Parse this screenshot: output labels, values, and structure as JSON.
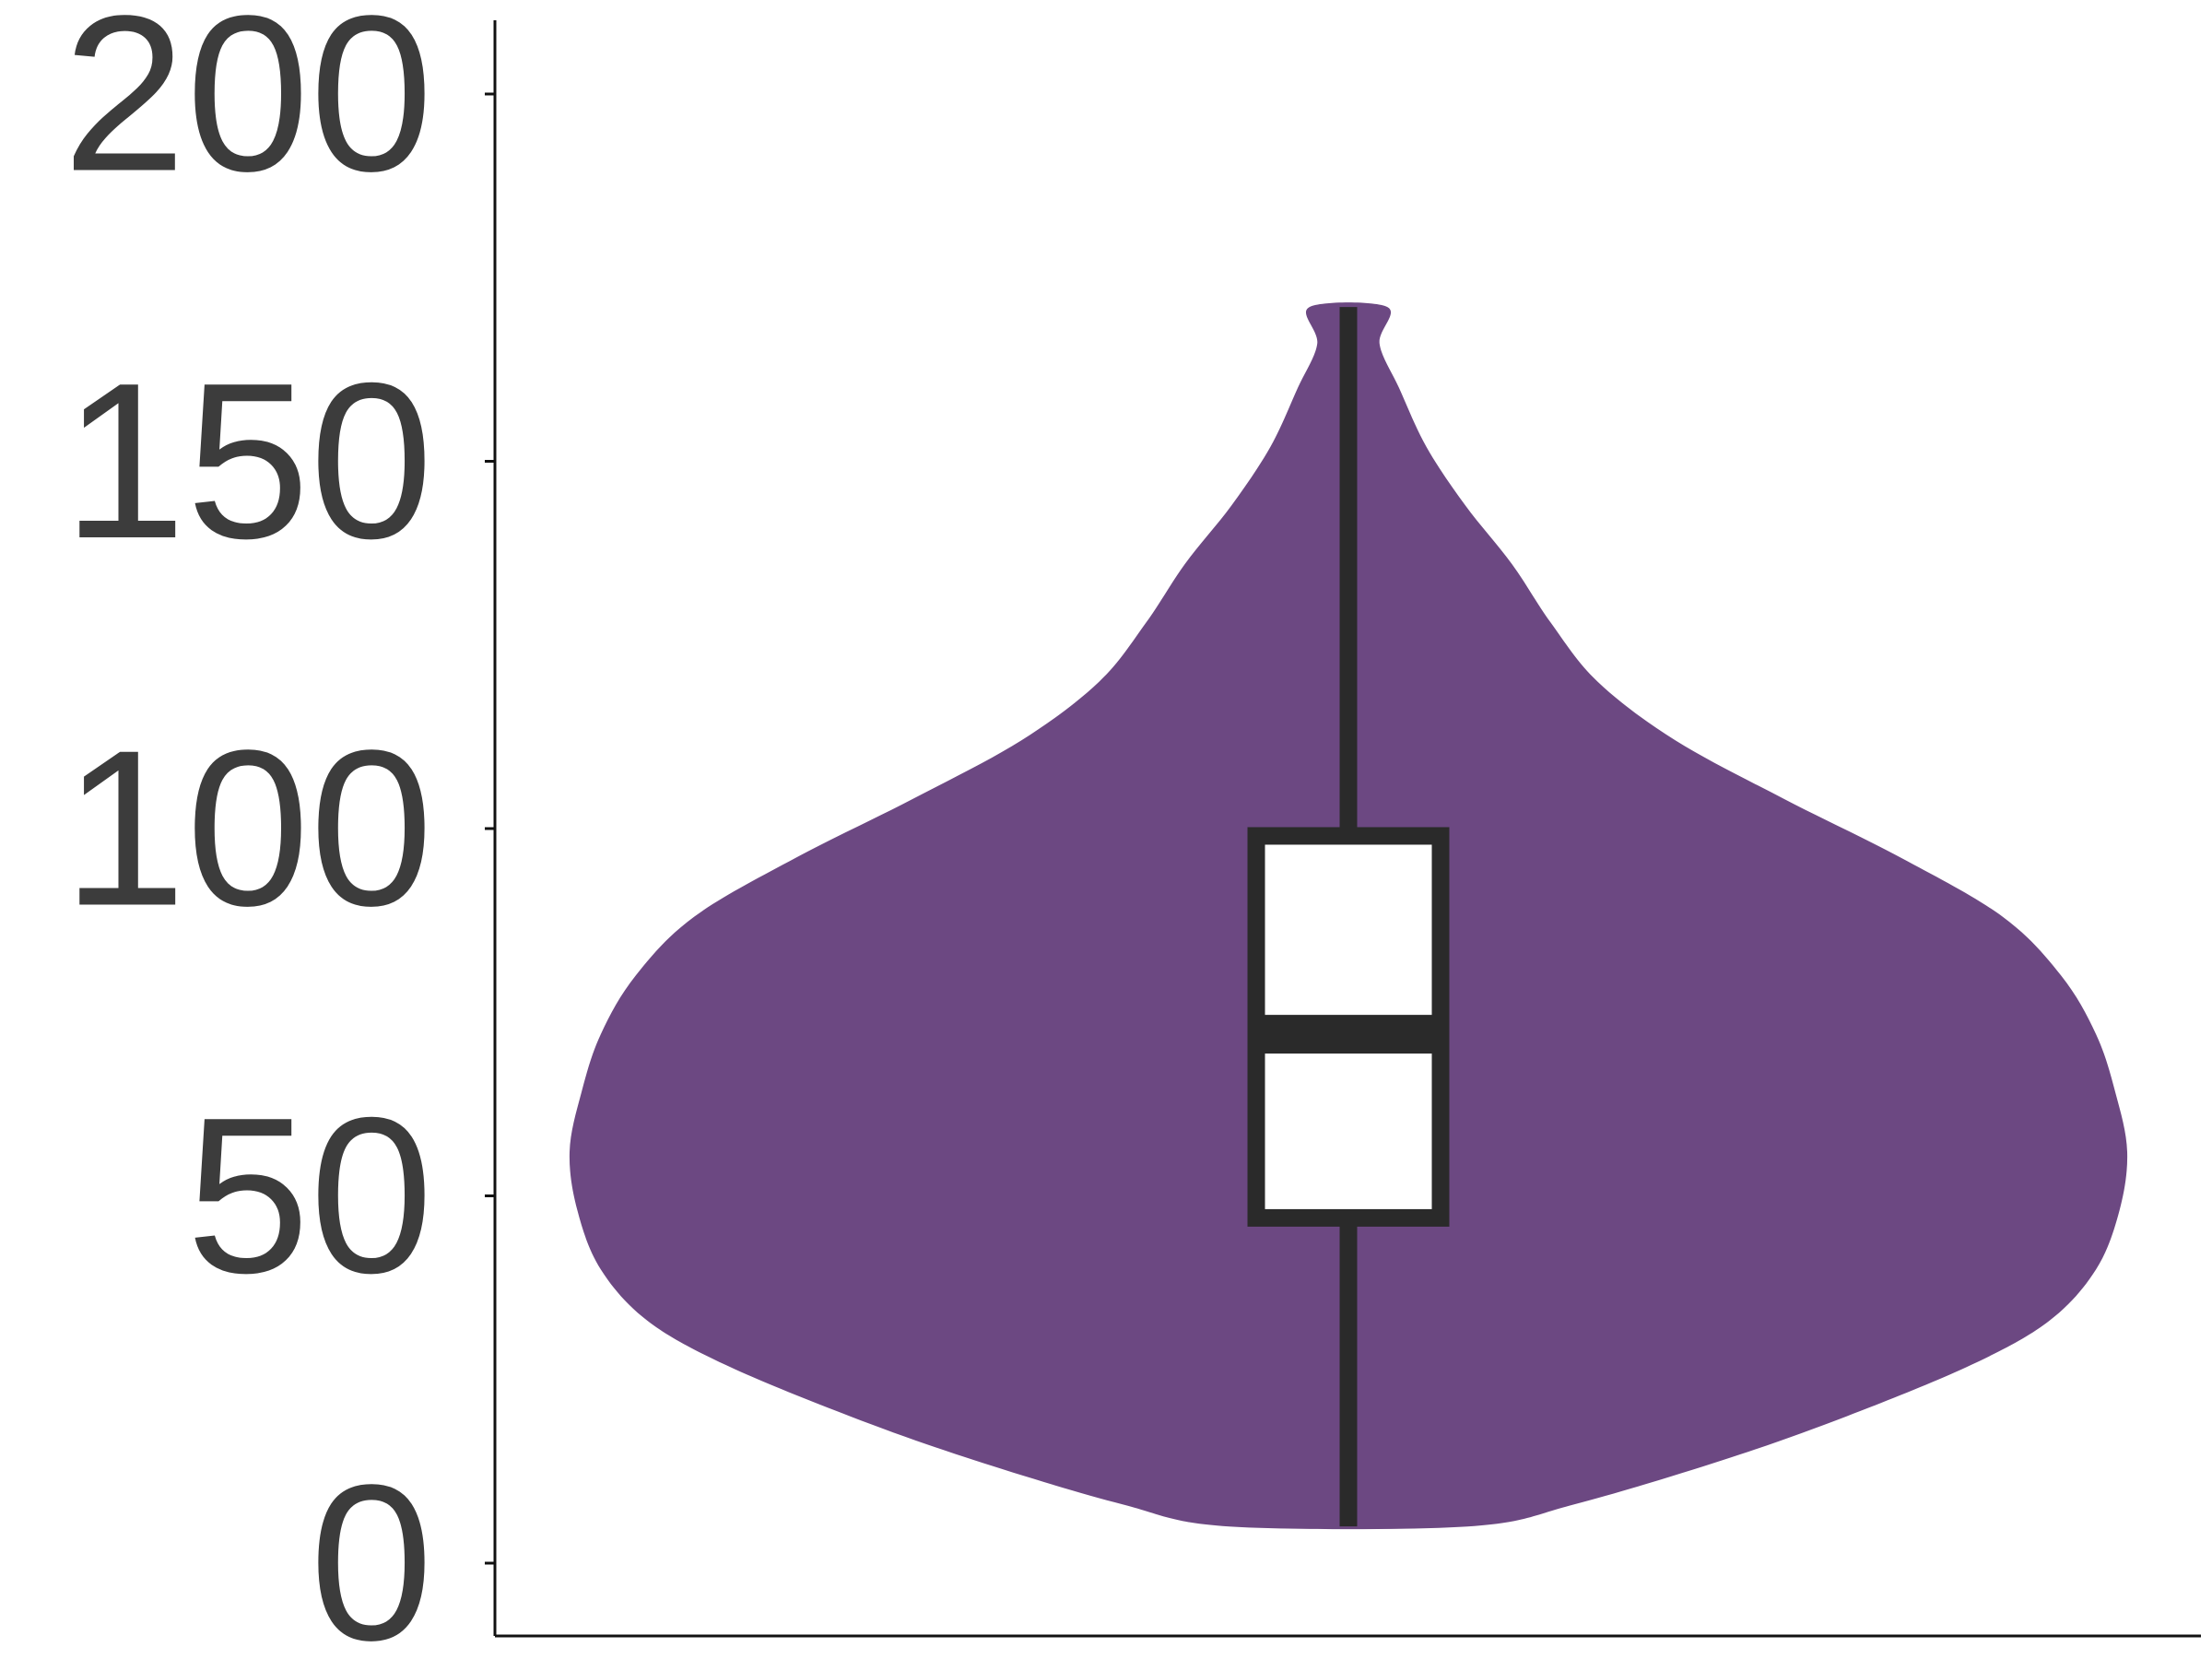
{
  "chart_data": {
    "type": "violin",
    "title": "",
    "xlabel": "",
    "ylabel": "",
    "ylim": [
      -10,
      210
    ],
    "yticks": [
      {
        "value": 0,
        "label": "0"
      },
      {
        "value": 50,
        "label": "50"
      },
      {
        "value": 100,
        "label": "100"
      },
      {
        "value": 150,
        "label": "150"
      },
      {
        "value": 200,
        "label": "200"
      }
    ],
    "grid": false,
    "legend": "none",
    "violin": {
      "color": "#6c4882",
      "min": 5,
      "max": 171,
      "profile": [
        {
          "y": 5,
          "w": 0.153
        },
        {
          "y": 8,
          "w": 0.29
        },
        {
          "y": 14,
          "w": 0.48
        },
        {
          "y": 20,
          "w": 0.64
        },
        {
          "y": 27,
          "w": 0.8
        },
        {
          "y": 33,
          "w": 0.9
        },
        {
          "y": 40,
          "w": 0.96
        },
        {
          "y": 48,
          "w": 0.99
        },
        {
          "y": 56,
          "w": 1.0
        },
        {
          "y": 64,
          "w": 0.985
        },
        {
          "y": 72,
          "w": 0.96
        },
        {
          "y": 80,
          "w": 0.915
        },
        {
          "y": 88,
          "w": 0.84
        },
        {
          "y": 96,
          "w": 0.71
        },
        {
          "y": 104,
          "w": 0.56
        },
        {
          "y": 112,
          "w": 0.42
        },
        {
          "y": 120,
          "w": 0.32
        },
        {
          "y": 128,
          "w": 0.26
        },
        {
          "y": 136,
          "w": 0.21
        },
        {
          "y": 144,
          "w": 0.15
        },
        {
          "y": 152,
          "w": 0.1
        },
        {
          "y": 160,
          "w": 0.065
        },
        {
          "y": 166,
          "w": 0.04
        },
        {
          "y": 171,
          "w": 0.05
        }
      ]
    },
    "box": {
      "q1": 47,
      "median": 72,
      "q3": 99,
      "whisker_low": 5,
      "whisker_high": 171,
      "line_color": "#2a2a2a",
      "fill": "#ffffff"
    }
  }
}
